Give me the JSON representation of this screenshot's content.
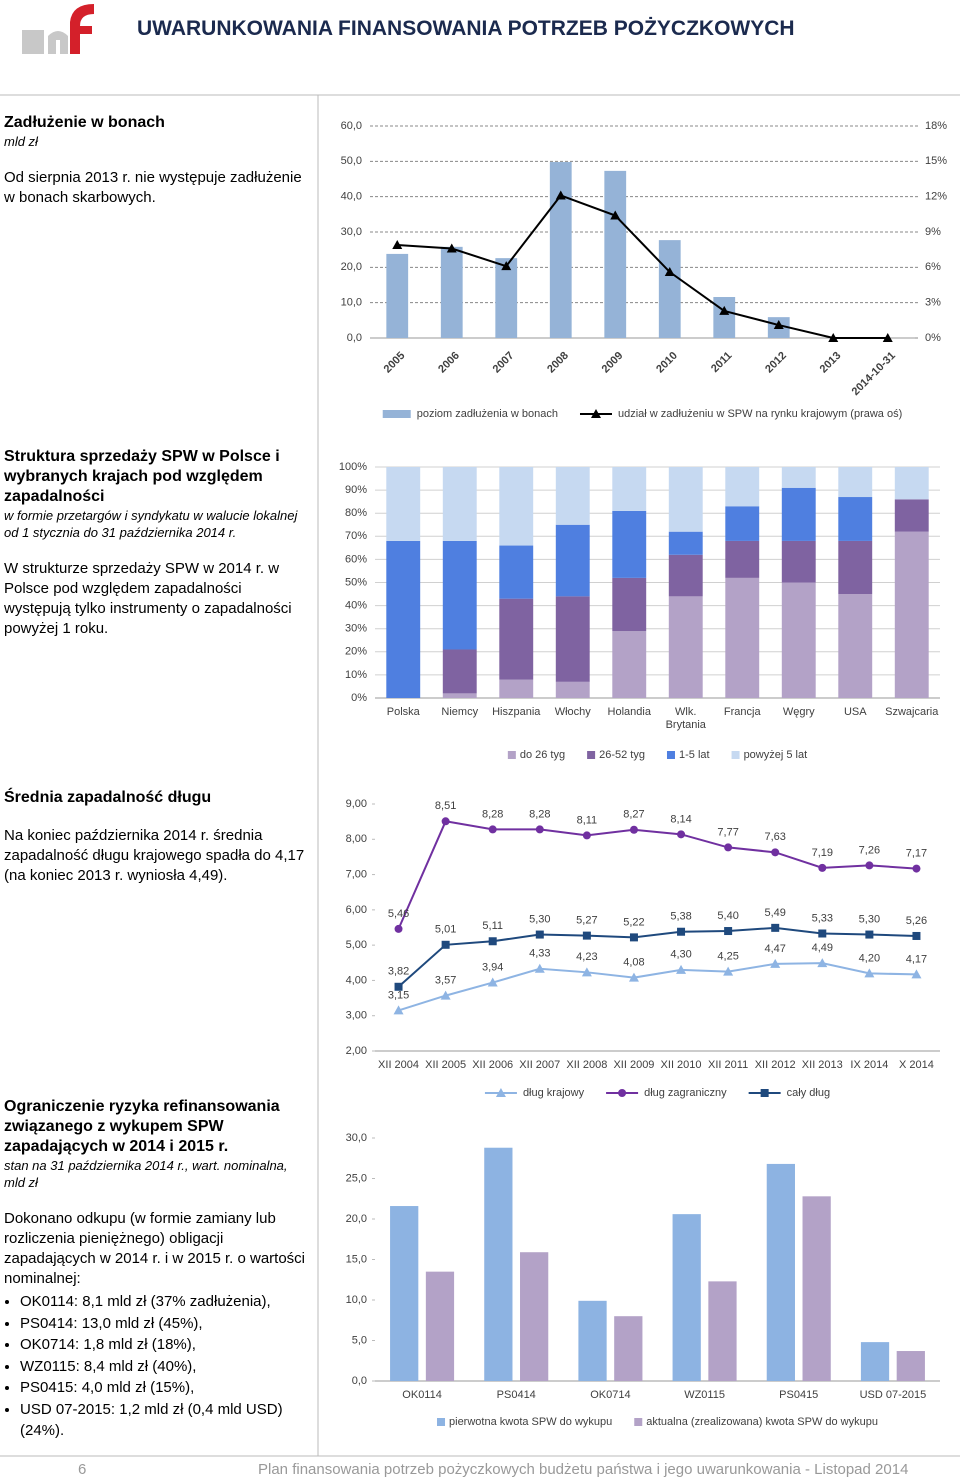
{
  "header": {
    "title": "UWARUNKOWANIA FINANSOWANIA POTRZEB POŻYCZKOWYCH"
  },
  "sections": [
    {
      "title": "Zadłużenie w bonach",
      "subtitle": "mld zł",
      "body": "Od sierpnia 2013 r. nie występuje zadłużenie w bonach skarbowych."
    },
    {
      "title": "Struktura sprzedaży SPW w Polsce i wybranych krajach pod względem zapadalności",
      "subtitle": "w formie przetargów i syndykatu w walucie lokalnej od 1 stycznia do 31 października 2014 r.",
      "body": "W strukturze sprzedaży SPW w 2014 r. w Polsce pod względem zapadalności występują tylko instrumenty o zapadalności powyżej 1 roku."
    },
    {
      "title": "Średnia zapadalność długu",
      "body": "Na koniec października 2014 r. średnia zapadalność długu krajowego spadła do 4,17 (na koniec 2013 r. wyniosła 4,49)."
    },
    {
      "title": "Ograniczenie ryzyka refinansowania związanego z wykupem SPW zapadających w 2014 i 2015 r.",
      "subtitle": "stan na 31 października 2014 r., wart. nominalna, mld zł",
      "body": "Dokonano odkupu (w formie zamiany lub rozliczenia pieniężnego) obligacji zapadających w 2014 r. i w 2015 r. o wartości nominalnej:",
      "items": [
        "OK0114: 8,1 mld zł (37% zadłużenia),",
        "PS0414: 13,0 mld zł (45%),",
        "OK0714: 1,8 mld zł (18%),",
        "WZ0115: 8,4 mld zł (40%),",
        "PS0415: 4,0 mld zł (15%),",
        "USD 07-2015: 1,2 mld zł (0,4 mld USD) (24%)."
      ]
    }
  ],
  "chart_data": [
    {
      "type": "combo",
      "categories": [
        "2005",
        "2006",
        "2007",
        "2008",
        "2009",
        "2010",
        "2011",
        "2012",
        "2013",
        "2014-10-31"
      ],
      "series": [
        {
          "name": "poziom zadłużenia w bonach",
          "type": "bar",
          "color": "#95b3d7",
          "values": [
            23.8,
            25.8,
            22.6,
            49.8,
            47.3,
            27.7,
            11.6,
            5.9,
            0,
            0
          ]
        },
        {
          "name": "udział w zadłużeniu w SPW na rynku krajowym (prawa oś)",
          "type": "line",
          "axis": "y2",
          "marker": "triangle",
          "color": "#000000",
          "values": [
            7.9,
            7.6,
            6.1,
            12.1,
            10.4,
            5.6,
            2.3,
            1.1,
            0,
            0
          ]
        }
      ],
      "ylim": [
        0,
        60
      ],
      "yticks": [
        {
          "value": 0,
          "label": "0,0"
        },
        {
          "value": 10,
          "label": "10,0"
        },
        {
          "value": 20,
          "label": "20,0"
        },
        {
          "value": 30,
          "label": "30,0"
        },
        {
          "value": 40,
          "label": "40,0"
        },
        {
          "value": 50,
          "label": "50,0"
        },
        {
          "value": 60,
          "label": "60,0"
        }
      ],
      "y2lim": [
        0,
        18
      ],
      "y2ticks": [
        {
          "value": 0,
          "label": "0%"
        },
        {
          "value": 3,
          "label": "3%"
        },
        {
          "value": 6,
          "label": "6%"
        },
        {
          "value": 9,
          "label": "9%"
        },
        {
          "value": 12,
          "label": "12%"
        },
        {
          "value": 15,
          "label": "15%"
        },
        {
          "value": 18,
          "label": "18%"
        }
      ],
      "grid": true,
      "legend": "bottom"
    },
    {
      "type": "stacked_bar",
      "categories": [
        "Polska",
        "Niemcy",
        "Hiszpania",
        "Włochy",
        "Holandia",
        "Wlk. Brytania",
        "Francja",
        "Węgry",
        "USA",
        "Szwajcaria"
      ],
      "series": [
        {
          "name": "do 26 tyg",
          "color": "#b3a2c7",
          "values": [
            0,
            2,
            8,
            7,
            29,
            44,
            52,
            50,
            45,
            72
          ]
        },
        {
          "name": "26-52 tyg",
          "color": "#7f63a1",
          "values": [
            0,
            19,
            35,
            37,
            23,
            18,
            16,
            18,
            23,
            14
          ]
        },
        {
          "name": "1-5 lat",
          "color": "#4f7fe0",
          "values": [
            68,
            47,
            23,
            31,
            29,
            10,
            15,
            23,
            19,
            0
          ]
        },
        {
          "name": "powyżej 5 lat",
          "color": "#c6d9f1",
          "values": [
            32,
            32,
            34,
            25,
            19,
            28,
            17,
            9,
            13,
            14
          ]
        }
      ],
      "ylim": [
        0,
        100
      ],
      "yticks": [
        {
          "value": 0,
          "label": "0%"
        },
        {
          "value": 10,
          "label": "10%"
        },
        {
          "value": 20,
          "label": "20%"
        },
        {
          "value": 30,
          "label": "30%"
        },
        {
          "value": 40,
          "label": "40%"
        },
        {
          "value": 50,
          "label": "50%"
        },
        {
          "value": 60,
          "label": "60%"
        },
        {
          "value": 70,
          "label": "70%"
        },
        {
          "value": 80,
          "label": "80%"
        },
        {
          "value": 90,
          "label": "90%"
        },
        {
          "value": 100,
          "label": "100%"
        }
      ],
      "grid": true,
      "legend": "bottom"
    },
    {
      "type": "line",
      "categories": [
        "XII 2004",
        "XII 2005",
        "XII 2006",
        "XII 2007",
        "XII 2008",
        "XII 2009",
        "XII 2010",
        "XII 2011",
        "XII 2012",
        "XII 2013",
        "IX 2014",
        "X 2014"
      ],
      "series": [
        {
          "name": "dług krajowy",
          "color": "#8eb4e3",
          "marker": "triangle",
          "values": [
            3.15,
            3.57,
            3.94,
            4.33,
            4.23,
            4.08,
            4.3,
            4.25,
            4.47,
            4.49,
            4.2,
            4.17
          ],
          "value_labels": [
            "3,15",
            "3,57",
            "3,94",
            "4,33",
            "4,23",
            "4,08",
            "4,30",
            "4,25",
            "4,47",
            "4,49",
            "4,20",
            "4,17"
          ]
        },
        {
          "name": "dług zagraniczny",
          "color": "#7030a0",
          "marker": "circle",
          "values": [
            5.46,
            8.51,
            8.28,
            8.28,
            8.11,
            8.27,
            8.14,
            7.77,
            7.63,
            7.19,
            7.26,
            7.17
          ],
          "value_labels": [
            "5,46",
            "8,51",
            "8,28",
            "8,28",
            "8,11",
            "8,27",
            "8,14",
            "7,77",
            "7,63",
            "7,19",
            "7,26",
            "7,17"
          ]
        },
        {
          "name": "cały dług",
          "color": "#1f497d",
          "marker": "square",
          "values": [
            3.82,
            5.01,
            5.11,
            5.3,
            5.27,
            5.22,
            5.38,
            5.4,
            5.49,
            5.33,
            5.3,
            5.26
          ],
          "value_labels": [
            "3,82",
            "5,01",
            "5,11",
            "5,30",
            "5,27",
            "5,22",
            "5,38",
            "5,40",
            "5,49",
            "5,33",
            "5,30",
            "5,26"
          ]
        }
      ],
      "ylim": [
        2,
        9
      ],
      "yticks": [
        {
          "value": 2,
          "label": "2,00"
        },
        {
          "value": 3,
          "label": "3,00"
        },
        {
          "value": 4,
          "label": "4,00"
        },
        {
          "value": 5,
          "label": "5,00"
        },
        {
          "value": 6,
          "label": "6,00"
        },
        {
          "value": 7,
          "label": "7,00"
        },
        {
          "value": 8,
          "label": "8,00"
        },
        {
          "value": 9,
          "label": "9,00"
        }
      ],
      "grid": false,
      "legend": "bottom"
    },
    {
      "type": "bar",
      "categories": [
        "OK0114",
        "PS0414",
        "OK0714",
        "WZ0115",
        "PS0415",
        "USD 07-2015"
      ],
      "series": [
        {
          "name": "pierwotna kwota SPW do wykupu",
          "color": "#8db3e2",
          "values": [
            21.6,
            28.8,
            9.9,
            20.6,
            26.8,
            4.8
          ]
        },
        {
          "name": "aktualna (zrealizowana) kwota SPW do wykupu",
          "color": "#b3a2c7",
          "values": [
            13.5,
            15.9,
            8.0,
            12.3,
            22.8,
            3.7
          ]
        }
      ],
      "ylim": [
        0,
        30
      ],
      "yticks": [
        {
          "value": 0,
          "label": "0,0"
        },
        {
          "value": 5,
          "label": "5,0"
        },
        {
          "value": 10,
          "label": "10,0"
        },
        {
          "value": 15,
          "label": "15,0"
        },
        {
          "value": 20,
          "label": "20,0"
        },
        {
          "value": 25,
          "label": "25,0"
        },
        {
          "value": 30,
          "label": "30,0"
        }
      ],
      "grid": false,
      "legend": "bottom"
    }
  ],
  "footer": {
    "page": "6",
    "text": "Plan finansowania potrzeb pożyczkowych budżetu państwa i jego uwarunkowania - Listopad 2014"
  }
}
